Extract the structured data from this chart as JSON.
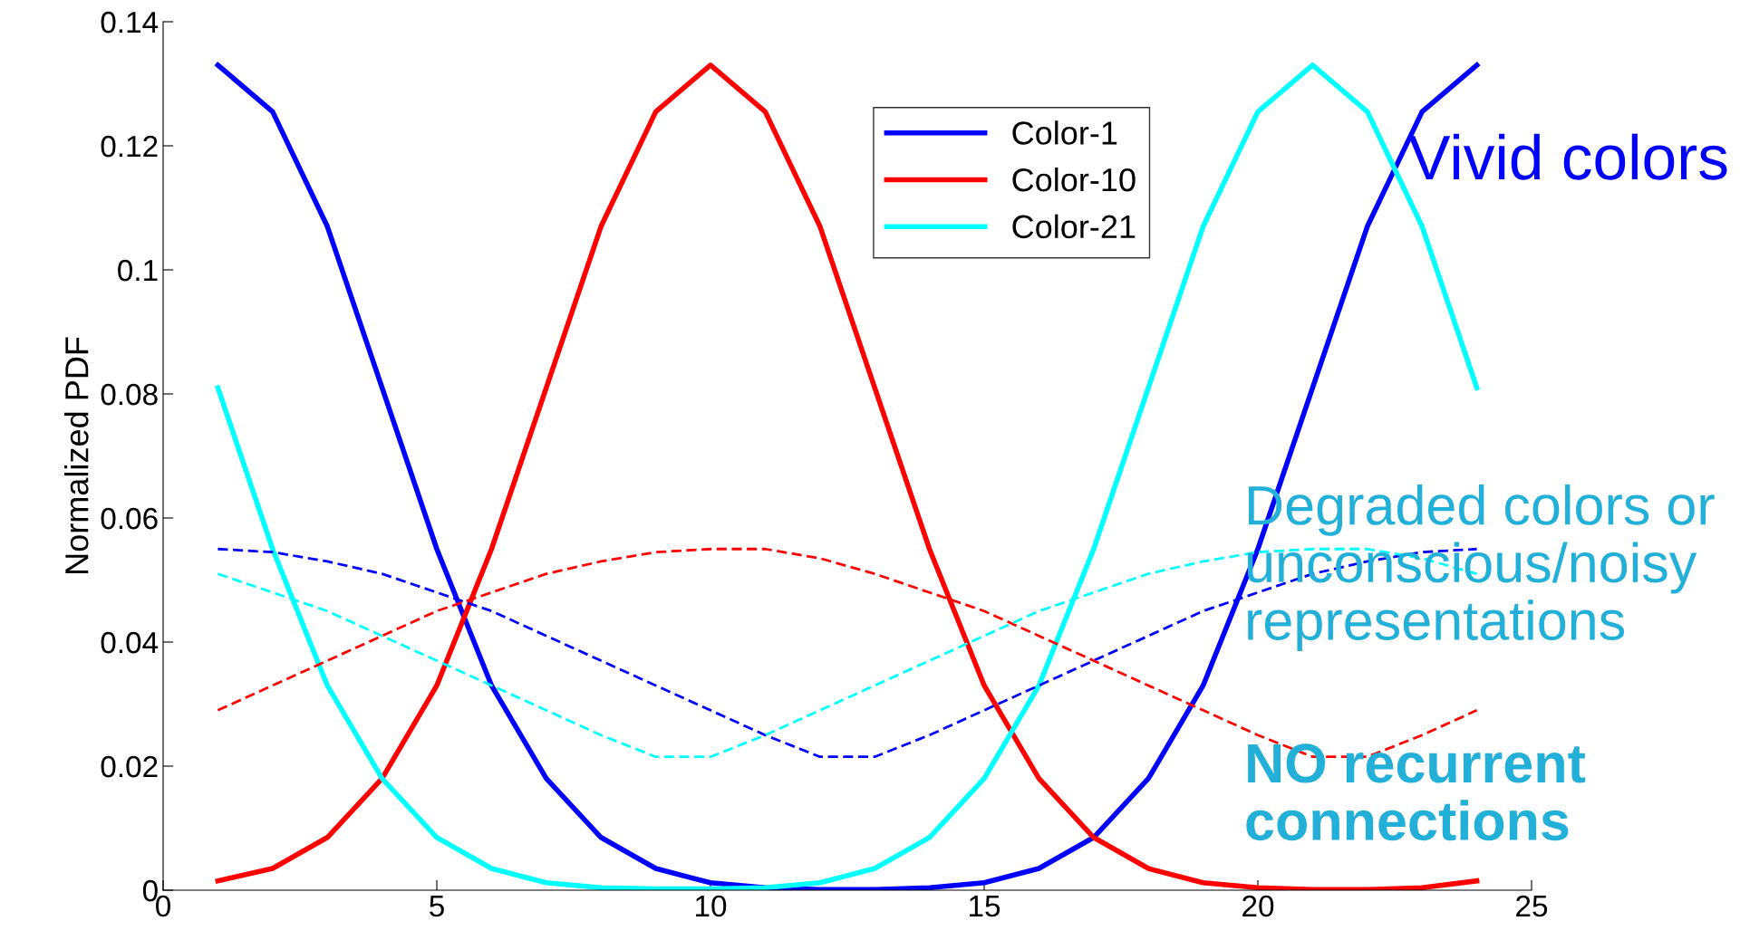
{
  "chart_data": {
    "type": "line",
    "ylabel": "Normalized PDF",
    "x": [
      1,
      2,
      3,
      4,
      5,
      6,
      7,
      8,
      9,
      10,
      11,
      12,
      13,
      14,
      15,
      16,
      17,
      18,
      19,
      20,
      21,
      22,
      23,
      24
    ],
    "series": [
      {
        "name": "Color-1",
        "color": "#0000ff",
        "line_style": "solid",
        "values": [
          0.133,
          0.1255,
          0.107,
          0.081,
          0.055,
          0.033,
          0.018,
          0.0085,
          0.0035,
          0.0012,
          0.0004,
          0.0001,
          0.0001,
          0.0004,
          0.0012,
          0.0035,
          0.0085,
          0.018,
          0.033,
          0.055,
          0.081,
          0.107,
          0.1255,
          0.133
        ]
      },
      {
        "name": "Color-10",
        "color": "#ff0000",
        "line_style": "solid",
        "values": [
          0.0015,
          0.0035,
          0.0085,
          0.018,
          0.033,
          0.055,
          0.081,
          0.107,
          0.1255,
          0.133,
          0.1255,
          0.107,
          0.081,
          0.055,
          0.033,
          0.018,
          0.0085,
          0.0035,
          0.0012,
          0.0004,
          0.0001,
          0.0001,
          0.0004,
          0.0015
        ]
      },
      {
        "name": "Color-21",
        "color": "#00ffff",
        "line_style": "solid",
        "values": [
          0.081,
          0.055,
          0.033,
          0.018,
          0.0085,
          0.0035,
          0.0012,
          0.0004,
          0.0002,
          0.0002,
          0.0004,
          0.0012,
          0.0035,
          0.0085,
          0.018,
          0.033,
          0.055,
          0.081,
          0.107,
          0.1255,
          0.133,
          0.1255,
          0.107,
          0.081
        ]
      },
      {
        "color": "#0000ff",
        "line_style": "dashed",
        "values": [
          0.055,
          0.0545,
          0.053,
          0.051,
          0.048,
          0.045,
          0.041,
          0.037,
          0.033,
          0.029,
          0.025,
          0.0215,
          0.0215,
          0.025,
          0.029,
          0.033,
          0.037,
          0.041,
          0.045,
          0.048,
          0.051,
          0.053,
          0.0545,
          0.055
        ]
      },
      {
        "color": "#ff0000",
        "line_style": "dashed",
        "values": [
          0.029,
          0.033,
          0.037,
          0.041,
          0.045,
          0.048,
          0.051,
          0.053,
          0.0545,
          0.055,
          0.055,
          0.0535,
          0.051,
          0.048,
          0.045,
          0.041,
          0.037,
          0.033,
          0.029,
          0.025,
          0.0215,
          0.0215,
          0.025,
          0.029
        ]
      },
      {
        "color": "#00ffff",
        "line_style": "dashed",
        "values": [
          0.051,
          0.048,
          0.045,
          0.041,
          0.037,
          0.033,
          0.029,
          0.025,
          0.0215,
          0.0215,
          0.025,
          0.029,
          0.033,
          0.037,
          0.041,
          0.045,
          0.048,
          0.051,
          0.053,
          0.0545,
          0.055,
          0.055,
          0.0535,
          0.051
        ]
      }
    ],
    "xlim": [
      0,
      25
    ],
    "xticks": [
      0,
      5,
      10,
      15,
      20,
      25
    ],
    "ylim": [
      0,
      0.14
    ],
    "yticks": [
      0,
      0.02,
      0.04,
      0.06,
      0.08,
      0.1,
      0.12,
      0.14
    ],
    "grid": false,
    "legend": "top",
    "marker": "none",
    "annotations": [
      "Vivid colors",
      "Degraded colors or\nunconscious/noisy\nrepresentations",
      "NO recurrent\nconnections"
    ]
  }
}
